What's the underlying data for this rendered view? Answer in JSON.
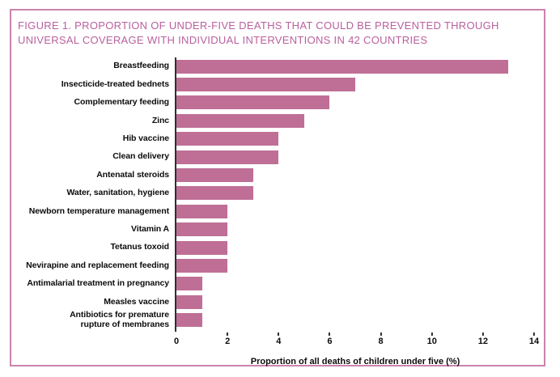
{
  "figure": {
    "title_lines": [
      "FIGURE 1. PROPORTION OF UNDER-FIVE DEATHS THAT COULD BE PREVENTED THROUGH",
      "UNIVERSAL COVERAGE WITH INDIVIDUAL INTERVENTIONS IN 42 COUNTRIES"
    ]
  },
  "colors": {
    "bar": "#bf6f96",
    "title_text": "#b9609e",
    "frame_border": "#cc83ae",
    "axis_line": "#2f2f2f",
    "label_text": "#0c0c0c"
  },
  "chart_data": {
    "type": "bar",
    "orientation": "horizontal",
    "title": "FIGURE 1. PROPORTION OF UNDER-FIVE DEATHS THAT COULD BE PREVENTED THROUGH UNIVERSAL COVERAGE WITH INDIVIDUAL INTERVENTIONS IN 42 COUNTRIES",
    "categories": [
      "Breastfeeding",
      "Insecticide-treated bednets",
      "Complementary feeding",
      "Zinc",
      "Hib vaccine",
      "Clean delivery",
      "Antenatal steroids",
      "Water, sanitation, hygiene",
      "Newborn temperature management",
      "Vitamin A",
      "Tetanus toxoid",
      "Nevirapine and replacement feeding",
      "Antimalarial treatment in pregnancy",
      "Measles vaccine",
      "Antibiotics for premature rupture of membranes"
    ],
    "values": [
      13,
      7,
      6,
      5,
      4,
      4,
      3,
      3,
      2,
      2,
      2,
      2,
      1,
      1,
      1
    ],
    "xlabel": "Proportion of all deaths of children under five (%)",
    "ylabel": "",
    "xlim": [
      0,
      14
    ],
    "xticks": [
      0,
      2,
      4,
      6,
      8,
      10,
      12,
      14
    ],
    "grid": false,
    "legend": null
  }
}
